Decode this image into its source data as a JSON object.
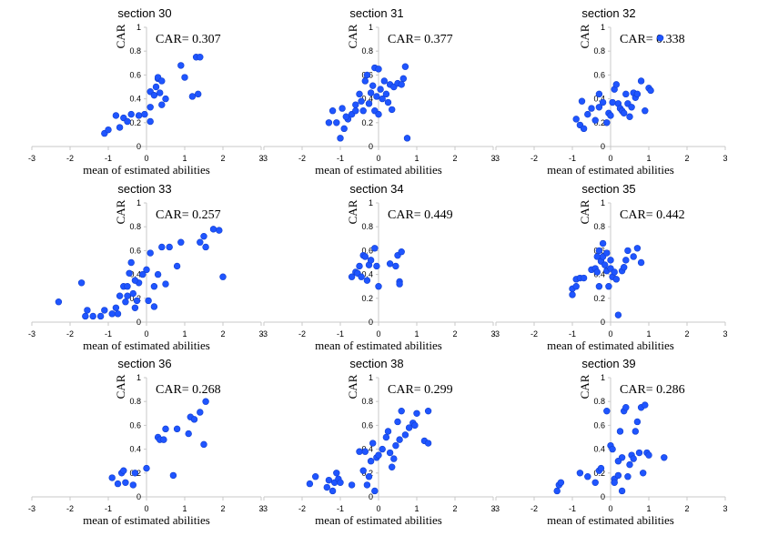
{
  "chart_data": [
    {
      "type": "scatter",
      "title": "section 30",
      "annotation": "CAR= 0.307",
      "xlabel": "mean of estimated abilities",
      "ylabel": "CAR",
      "xlim": [
        -3,
        3
      ],
      "ylim": [
        0,
        1
      ],
      "xticks": [
        "-3",
        "-2",
        "-1",
        "0",
        "1",
        "2",
        "3"
      ],
      "yticks": [
        "0",
        "0.2",
        "0.4",
        "0.6",
        "0.8",
        "1"
      ],
      "color": "#1f55ff",
      "points": [
        [
          -1.1,
          0.11
        ],
        [
          -1.0,
          0.14
        ],
        [
          -0.7,
          0.16
        ],
        [
          -0.8,
          0.26
        ],
        [
          -0.6,
          0.24
        ],
        [
          -0.5,
          0.21
        ],
        [
          -0.4,
          0.27
        ],
        [
          -0.2,
          0.26
        ],
        [
          -0.05,
          0.27
        ],
        [
          0.1,
          0.33
        ],
        [
          0.1,
          0.21
        ],
        [
          0.1,
          0.46
        ],
        [
          0.2,
          0.43
        ],
        [
          0.25,
          0.5
        ],
        [
          0.3,
          0.57
        ],
        [
          0.3,
          0.58
        ],
        [
          0.35,
          0.45
        ],
        [
          0.4,
          0.55
        ],
        [
          0.4,
          0.35
        ],
        [
          0.5,
          0.4
        ],
        [
          0.9,
          0.68
        ],
        [
          1.0,
          0.58
        ],
        [
          1.2,
          0.42
        ],
        [
          1.35,
          0.44
        ],
        [
          1.3,
          0.75
        ],
        [
          1.4,
          0.75
        ]
      ]
    },
    {
      "type": "scatter",
      "title": "section 31",
      "annotation": "CAR= 0.377",
      "xlabel": "mean of estimated abilities",
      "ylabel": "CAR",
      "xlim": [
        -3,
        3
      ],
      "ylim": [
        0,
        1
      ],
      "xticks": [
        "-3",
        "-2",
        "-1",
        "0",
        "1",
        "2",
        "3"
      ],
      "yticks": [
        "0",
        "0.2",
        "0.4",
        "0.6",
        "0.8",
        "1"
      ],
      "color": "#1f55ff",
      "points": [
        [
          -1.3,
          0.2
        ],
        [
          -1.1,
          0.2
        ],
        [
          -1.0,
          0.07
        ],
        [
          -0.9,
          0.15
        ],
        [
          -0.8,
          0.23
        ],
        [
          -0.7,
          0.27
        ],
        [
          -0.6,
          0.3
        ],
        [
          -0.6,
          0.35
        ],
        [
          -0.5,
          0.44
        ],
        [
          -0.45,
          0.38
        ],
        [
          -0.4,
          0.3
        ],
        [
          -0.35,
          0.55
        ],
        [
          -0.3,
          0.6
        ],
        [
          -0.25,
          0.36
        ],
        [
          -0.2,
          0.45
        ],
        [
          -0.15,
          0.51
        ],
        [
          -0.1,
          0.66
        ],
        [
          -0.1,
          0.3
        ],
        [
          -0.05,
          0.42
        ],
        [
          0.0,
          0.65
        ],
        [
          0.0,
          0.27
        ],
        [
          0.05,
          0.48
        ],
        [
          0.1,
          0.4
        ],
        [
          0.15,
          0.55
        ],
        [
          0.2,
          0.44
        ],
        [
          0.25,
          0.37
        ],
        [
          0.3,
          0.52
        ],
        [
          0.35,
          0.31
        ],
        [
          0.4,
          0.5
        ],
        [
          0.5,
          0.53
        ],
        [
          0.6,
          0.52
        ],
        [
          0.65,
          0.57
        ],
        [
          0.7,
          0.67
        ],
        [
          0.75,
          0.07
        ],
        [
          -1.2,
          0.3
        ],
        [
          -0.95,
          0.32
        ],
        [
          -0.85,
          0.25
        ]
      ]
    },
    {
      "type": "scatter",
      "title": "section 32",
      "annotation": "CAR= 0.338",
      "xlabel": "mean of estimated abilities",
      "ylabel": "CAR",
      "xlim": [
        -3,
        3
      ],
      "ylim": [
        0,
        1
      ],
      "xticks": [
        "-3",
        "-2",
        "-1",
        "0",
        "1",
        "2",
        "3"
      ],
      "yticks": [
        "0",
        "0.2",
        "0.4",
        "0.6",
        "0.8",
        "1"
      ],
      "color": "#1f55ff",
      "points": [
        [
          -0.9,
          0.23
        ],
        [
          -0.8,
          0.18
        ],
        [
          -0.7,
          0.15
        ],
        [
          -0.75,
          0.38
        ],
        [
          -0.6,
          0.27
        ],
        [
          -0.4,
          0.22
        ],
        [
          -0.3,
          0.33
        ],
        [
          -0.2,
          0.37
        ],
        [
          -0.1,
          0.2
        ],
        [
          -0.05,
          0.28
        ],
        [
          0.0,
          0.26
        ],
        [
          0.05,
          0.37
        ],
        [
          0.1,
          0.48
        ],
        [
          0.15,
          0.52
        ],
        [
          0.2,
          0.36
        ],
        [
          0.25,
          0.32
        ],
        [
          0.3,
          0.3
        ],
        [
          0.35,
          0.28
        ],
        [
          0.4,
          0.44
        ],
        [
          0.45,
          0.36
        ],
        [
          0.5,
          0.25
        ],
        [
          0.55,
          0.33
        ],
        [
          0.6,
          0.45
        ],
        [
          0.65,
          0.41
        ],
        [
          0.7,
          0.44
        ],
        [
          0.8,
          0.55
        ],
        [
          0.9,
          0.3
        ],
        [
          1.0,
          0.49
        ],
        [
          1.05,
          0.47
        ],
        [
          1.3,
          0.91
        ],
        [
          -0.3,
          0.44
        ],
        [
          -0.5,
          0.32
        ]
      ]
    },
    {
      "type": "scatter",
      "title": "section 33",
      "annotation": "CAR= 0.257",
      "xlabel": "mean of estimated abilities",
      "ylabel": "CAR",
      "xlim": [
        -3,
        3
      ],
      "ylim": [
        0,
        1
      ],
      "xticks": [
        "-3",
        "-2",
        "-1",
        "0",
        "1",
        "2",
        "3"
      ],
      "yticks": [
        "0",
        "0.2",
        "0.4",
        "0.6",
        "0.8",
        "1"
      ],
      "color": "#1f55ff",
      "points": [
        [
          -2.3,
          0.17
        ],
        [
          -1.7,
          0.33
        ],
        [
          -1.6,
          0.05
        ],
        [
          -1.55,
          0.1
        ],
        [
          -1.4,
          0.05
        ],
        [
          -1.2,
          0.05
        ],
        [
          -1.1,
          0.1
        ],
        [
          -0.9,
          0.07
        ],
        [
          -0.8,
          0.12
        ],
        [
          -0.75,
          0.07
        ],
        [
          -0.7,
          0.22
        ],
        [
          -0.6,
          0.3
        ],
        [
          -0.55,
          0.17
        ],
        [
          -0.5,
          0.3
        ],
        [
          -0.45,
          0.41
        ],
        [
          -0.4,
          0.5
        ],
        [
          -0.35,
          0.24
        ],
        [
          -0.3,
          0.12
        ],
        [
          -0.25,
          0.18
        ],
        [
          -0.2,
          0.33
        ],
        [
          -0.1,
          0.4
        ],
        [
          0.0,
          0.44
        ],
        [
          0.05,
          0.18
        ],
        [
          0.1,
          0.58
        ],
        [
          0.2,
          0.13
        ],
        [
          0.2,
          0.3
        ],
        [
          0.3,
          0.4
        ],
        [
          0.4,
          0.63
        ],
        [
          0.5,
          0.32
        ],
        [
          0.6,
          0.63
        ],
        [
          0.8,
          0.47
        ],
        [
          0.9,
          0.67
        ],
        [
          1.4,
          0.67
        ],
        [
          1.5,
          0.72
        ],
        [
          1.55,
          0.63
        ],
        [
          1.75,
          0.78
        ],
        [
          1.9,
          0.77
        ],
        [
          2.0,
          0.38
        ],
        [
          -0.5,
          0.22
        ],
        [
          -0.3,
          0.35
        ]
      ]
    },
    {
      "type": "scatter",
      "title": "section 34",
      "annotation": "CAR= 0.449",
      "xlabel": "mean of estimated abilities",
      "ylabel": "CAR",
      "xlim": [
        -3,
        3
      ],
      "ylim": [
        0,
        1
      ],
      "xticks": [
        "-3",
        "-2",
        "-1",
        "0",
        "1",
        "2",
        "3"
      ],
      "yticks": [
        "0",
        "0.2",
        "0.4",
        "0.6",
        "0.8",
        "1"
      ],
      "color": "#1f55ff",
      "points": [
        [
          -0.7,
          0.38
        ],
        [
          -0.6,
          0.42
        ],
        [
          -0.55,
          0.41
        ],
        [
          -0.5,
          0.47
        ],
        [
          -0.45,
          0.38
        ],
        [
          -0.4,
          0.56
        ],
        [
          -0.35,
          0.55
        ],
        [
          -0.3,
          0.35
        ],
        [
          -0.25,
          0.48
        ],
        [
          -0.2,
          0.52
        ],
        [
          -0.1,
          0.62
        ],
        [
          -0.05,
          0.47
        ],
        [
          0.0,
          0.3
        ],
        [
          0.3,
          0.49
        ],
        [
          0.45,
          0.47
        ],
        [
          0.5,
          0.56
        ],
        [
          0.55,
          0.34
        ],
        [
          0.55,
          0.32
        ],
        [
          0.6,
          0.59
        ]
      ]
    },
    {
      "type": "scatter",
      "title": "section 35",
      "annotation": "CAR= 0.442",
      "xlabel": "mean of estimated abilities",
      "ylabel": "CAR",
      "xlim": [
        -3,
        3
      ],
      "ylim": [
        0,
        1
      ],
      "xticks": [
        "-3",
        "-2",
        "-1",
        "0",
        "1",
        "2",
        "3"
      ],
      "yticks": [
        "0",
        "0.2",
        "0.4",
        "0.6",
        "0.8",
        "1"
      ],
      "color": "#1f55ff",
      "points": [
        [
          -1.0,
          0.23
        ],
        [
          -1.0,
          0.28
        ],
        [
          -0.9,
          0.3
        ],
        [
          -0.9,
          0.36
        ],
        [
          -0.8,
          0.37
        ],
        [
          -0.7,
          0.37
        ],
        [
          -0.5,
          0.44
        ],
        [
          -0.4,
          0.45
        ],
        [
          -0.35,
          0.55
        ],
        [
          -0.3,
          0.6
        ],
        [
          -0.3,
          0.3
        ],
        [
          -0.25,
          0.51
        ],
        [
          -0.2,
          0.66
        ],
        [
          -0.2,
          0.55
        ],
        [
          -0.15,
          0.48
        ],
        [
          -0.1,
          0.43
        ],
        [
          -0.1,
          0.58
        ],
        [
          -0.05,
          0.3
        ],
        [
          0.0,
          0.52
        ],
        [
          0.0,
          0.45
        ],
        [
          0.05,
          0.38
        ],
        [
          0.1,
          0.42
        ],
        [
          0.15,
          0.36
        ],
        [
          0.2,
          0.06
        ],
        [
          0.3,
          0.43
        ],
        [
          0.35,
          0.46
        ],
        [
          0.4,
          0.52
        ],
        [
          0.45,
          0.6
        ],
        [
          0.6,
          0.55
        ],
        [
          0.7,
          0.62
        ],
        [
          0.8,
          0.5
        ],
        [
          -0.35,
          0.42
        ]
      ]
    },
    {
      "type": "scatter",
      "title": "section 36",
      "annotation": "CAR= 0.268",
      "xlabel": "mean of estimated abilities",
      "ylabel": "CAR",
      "xlim": [
        -3,
        3
      ],
      "ylim": [
        0,
        1
      ],
      "xticks": [
        "-3",
        "-2",
        "-1",
        "0",
        "1",
        "2",
        "3"
      ],
      "yticks": [
        "0",
        "0.2",
        "0.4",
        "0.6",
        "0.8",
        "1"
      ],
      "color": "#1f55ff",
      "points": [
        [
          -0.9,
          0.16
        ],
        [
          -0.75,
          0.11
        ],
        [
          -0.65,
          0.2
        ],
        [
          -0.6,
          0.22
        ],
        [
          -0.55,
          0.12
        ],
        [
          -0.35,
          0.1
        ],
        [
          -0.3,
          0.2
        ],
        [
          0.0,
          0.24
        ],
        [
          0.3,
          0.5
        ],
        [
          0.35,
          0.48
        ],
        [
          0.45,
          0.48
        ],
        [
          0.5,
          0.57
        ],
        [
          0.7,
          0.18
        ],
        [
          0.8,
          0.57
        ],
        [
          1.1,
          0.53
        ],
        [
          1.15,
          0.67
        ],
        [
          1.25,
          0.65
        ],
        [
          1.4,
          0.71
        ],
        [
          1.5,
          0.44
        ],
        [
          1.55,
          0.8
        ]
      ]
    },
    {
      "type": "scatter",
      "title": "section 38",
      "annotation": "CAR= 0.299",
      "xlabel": "mean of estimated abilities",
      "ylabel": "CAR",
      "xlim": [
        -3,
        3
      ],
      "ylim": [
        0,
        1
      ],
      "xticks": [
        "-3",
        "-2",
        "-1",
        "0",
        "1",
        "2",
        "3"
      ],
      "yticks": [
        "0",
        "0.2",
        "0.4",
        "0.6",
        "0.8",
        "1"
      ],
      "color": "#1f55ff",
      "points": [
        [
          -1.8,
          0.11
        ],
        [
          -1.65,
          0.17
        ],
        [
          -1.35,
          0.08
        ],
        [
          -1.3,
          0.14
        ],
        [
          -1.2,
          0.05
        ],
        [
          -1.15,
          0.12
        ],
        [
          -1.1,
          0.2
        ],
        [
          -1.05,
          0.15
        ],
        [
          -1.0,
          0.12
        ],
        [
          -0.7,
          0.1
        ],
        [
          -0.5,
          0.38
        ],
        [
          -0.4,
          0.22
        ],
        [
          -0.3,
          0.1
        ],
        [
          -0.25,
          0.17
        ],
        [
          -0.2,
          0.3
        ],
        [
          -0.15,
          0.45
        ],
        [
          -0.1,
          0.05
        ],
        [
          -0.05,
          0.33
        ],
        [
          0.0,
          0.35
        ],
        [
          0.1,
          0.4
        ],
        [
          0.2,
          0.5
        ],
        [
          0.25,
          0.55
        ],
        [
          0.3,
          0.37
        ],
        [
          0.35,
          0.25
        ],
        [
          0.4,
          0.32
        ],
        [
          0.45,
          0.43
        ],
        [
          0.5,
          0.63
        ],
        [
          0.55,
          0.48
        ],
        [
          0.6,
          0.72
        ],
        [
          0.7,
          0.52
        ],
        [
          0.8,
          0.58
        ],
        [
          0.9,
          0.62
        ],
        [
          0.95,
          0.6
        ],
        [
          1.0,
          0.7
        ],
        [
          1.2,
          0.47
        ],
        [
          1.3,
          0.45
        ],
        [
          1.3,
          0.72
        ],
        [
          -0.35,
          0.38
        ]
      ]
    },
    {
      "type": "scatter",
      "title": "section 39",
      "annotation": "CAR= 0.286",
      "xlabel": "mean of estimated abilities",
      "ylabel": "CAR",
      "xlim": [
        -3,
        3
      ],
      "ylim": [
        0,
        1
      ],
      "xticks": [
        "-3",
        "-2",
        "-1",
        "0",
        "1",
        "2",
        "3"
      ],
      "yticks": [
        "0",
        "0.2",
        "0.4",
        "0.6",
        "0.8",
        "1"
      ],
      "color": "#1f55ff",
      "points": [
        [
          -1.4,
          0.05
        ],
        [
          -1.35,
          0.1
        ],
        [
          -1.3,
          0.12
        ],
        [
          -0.8,
          0.2
        ],
        [
          -0.6,
          0.17
        ],
        [
          -0.4,
          0.12
        ],
        [
          -0.3,
          0.22
        ],
        [
          -0.25,
          0.24
        ],
        [
          -0.1,
          0.72
        ],
        [
          0.0,
          0.43
        ],
        [
          0.05,
          0.4
        ],
        [
          0.1,
          0.15
        ],
        [
          0.1,
          0.12
        ],
        [
          0.2,
          0.18
        ],
        [
          0.25,
          0.55
        ],
        [
          0.3,
          0.05
        ],
        [
          0.3,
          0.33
        ],
        [
          0.35,
          0.72
        ],
        [
          0.4,
          0.75
        ],
        [
          0.45,
          0.17
        ],
        [
          0.5,
          0.27
        ],
        [
          0.55,
          0.35
        ],
        [
          0.6,
          0.32
        ],
        [
          0.65,
          0.55
        ],
        [
          0.7,
          0.63
        ],
        [
          0.75,
          0.37
        ],
        [
          0.8,
          0.75
        ],
        [
          0.85,
          0.2
        ],
        [
          0.9,
          0.77
        ],
        [
          0.95,
          0.37
        ],
        [
          1.0,
          0.35
        ],
        [
          1.4,
          0.33
        ],
        [
          0.2,
          0.3
        ]
      ]
    }
  ]
}
